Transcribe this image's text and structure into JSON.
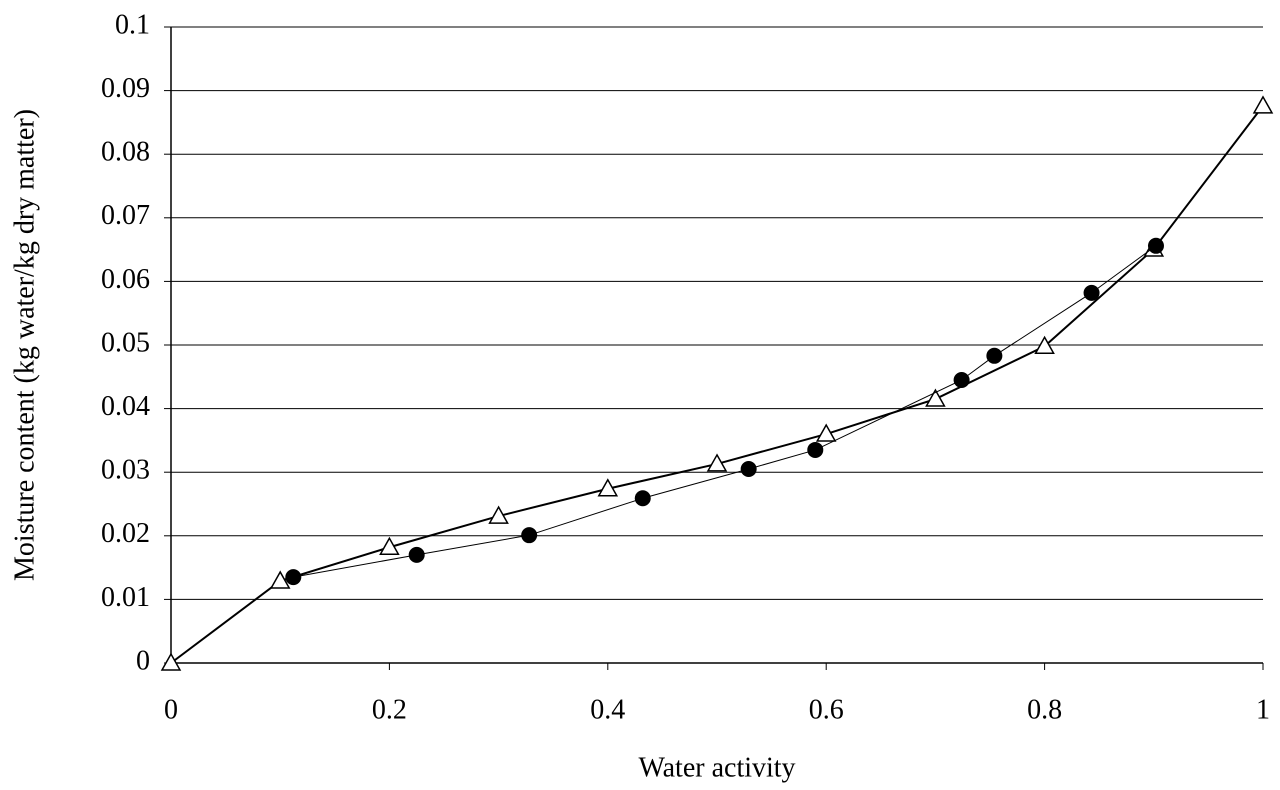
{
  "chart_data": {
    "type": "line",
    "xlabel": "Water activity",
    "ylabel": "Moisture content (kg water/kg dry matter)",
    "xlim": [
      0,
      1
    ],
    "ylim": [
      0,
      0.1
    ],
    "xticks": [
      0,
      0.2,
      0.4,
      0.6,
      0.8,
      1
    ],
    "yticks": [
      0,
      0.01,
      0.02,
      0.03,
      0.04,
      0.05,
      0.06,
      0.07,
      0.08,
      0.09,
      0.1
    ],
    "grid": true,
    "series": [
      {
        "color": "#000000",
        "marker": "triangle",
        "line_width": 2,
        "x": [
          0,
          0.1,
          0.2,
          0.3,
          0.4,
          0.5,
          0.6,
          0.7,
          0.8,
          0.9,
          1
        ],
        "values": [
          0,
          0.0129,
          0.0182,
          0.0231,
          0.0274,
          0.0313,
          0.036,
          0.0415,
          0.0498,
          0.0651,
          0.0876
        ]
      },
      {
        "color": "#000000",
        "marker": "circle",
        "line_width": 1,
        "x": [
          0.112,
          0.225,
          0.328,
          0.432,
          0.529,
          0.59,
          0.724,
          0.754,
          0.843,
          0.902
        ],
        "values": [
          0.0135,
          0.017,
          0.0201,
          0.0259,
          0.0305,
          0.0335,
          0.0445,
          0.0483,
          0.0582,
          0.0656
        ]
      }
    ]
  }
}
